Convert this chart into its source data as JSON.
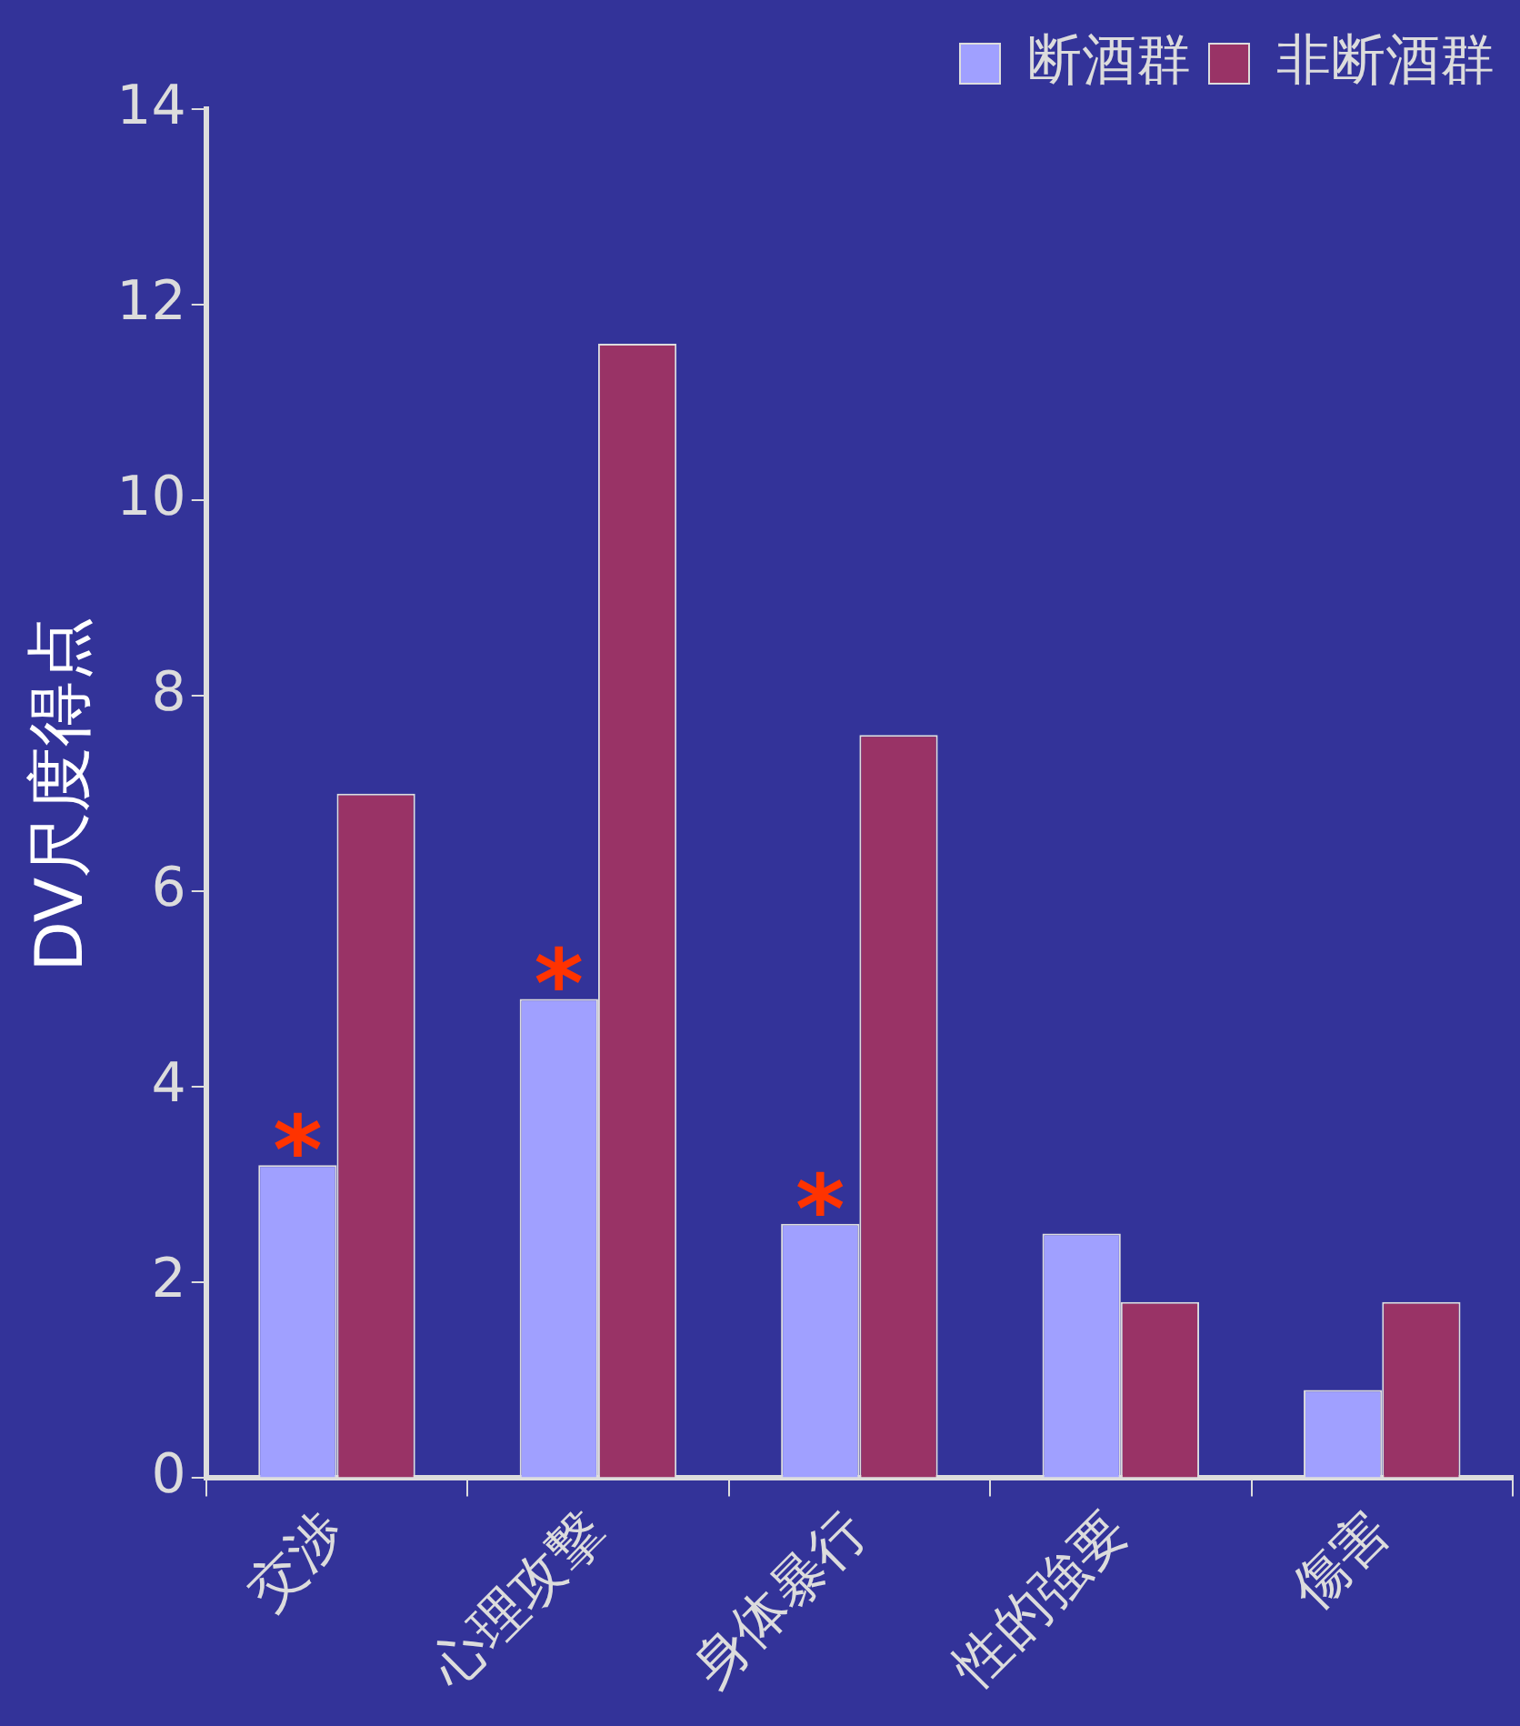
{
  "chart_data": {
    "type": "bar",
    "ylabel": "DV尺度得点",
    "categories": [
      "交渉",
      "心理攻撃",
      "身体暴行",
      "性的強要",
      "傷害"
    ],
    "series": [
      {
        "name": "断酒群",
        "color": "#a0a0ff",
        "values": [
          3.2,
          4.9,
          2.6,
          2.5,
          0.9
        ]
      },
      {
        "name": "非断酒群",
        "color": "#993366",
        "values": [
          7.0,
          11.6,
          7.6,
          1.8,
          1.8
        ]
      }
    ],
    "ylim": [
      0,
      14
    ],
    "yticks": [
      0,
      2,
      4,
      6,
      8,
      10,
      12,
      14
    ],
    "grid": false,
    "legend": "top right",
    "annotations": [
      {
        "text": "*",
        "x": "交渉",
        "y": 3.2
      },
      {
        "text": "*",
        "x": "心理攻撃",
        "y": 4.9
      },
      {
        "text": "*",
        "x": "身体暴行",
        "y": 2.6
      }
    ]
  }
}
